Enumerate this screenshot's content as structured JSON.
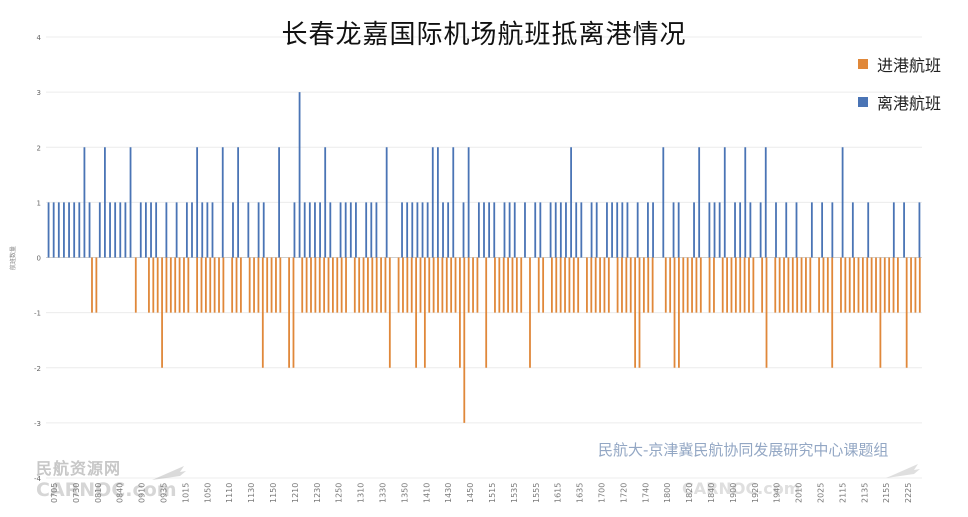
{
  "chart_data": {
    "type": "bar",
    "title": "长春龙嘉国际机场航班抵离港情况",
    "ylabel": "航班数量",
    "xlabel": "",
    "ylim": [
      -4,
      4
    ],
    "yticks": [
      4,
      3,
      2,
      1,
      0,
      -1,
      -2,
      -3,
      -4
    ],
    "grid": true,
    "legend_position": "top-right",
    "xtick_labels": [
      "0705",
      "0730",
      "0810",
      "0840",
      "0910",
      "0935",
      "1015",
      "1050",
      "1110",
      "1130",
      "1150",
      "1210",
      "1230",
      "1250",
      "1310",
      "1330",
      "1350",
      "1410",
      "1430",
      "1450",
      "1515",
      "1535",
      "1555",
      "1615",
      "1635",
      "1700",
      "1720",
      "1740",
      "1800",
      "1820",
      "1840",
      "1900",
      "1920",
      "1940",
      "2010",
      "2025",
      "2115",
      "2135",
      "2155",
      "2225"
    ],
    "series": [
      {
        "name": "进港航班",
        "color": "#e0883a",
        "values": [
          0,
          0,
          0,
          0,
          0,
          0,
          0,
          0,
          0,
          0,
          -1,
          -1,
          0,
          0,
          0,
          0,
          0,
          0,
          0,
          0,
          -1,
          0,
          0,
          -1,
          -1,
          -1,
          -2,
          -1,
          -1,
          -1,
          -1,
          -1,
          -1,
          0,
          -1,
          -1,
          -1,
          -1,
          -1,
          -1,
          -1,
          0,
          -1,
          -1,
          -1,
          0,
          -1,
          -1,
          -1,
          -2,
          -1,
          -1,
          -1,
          -1,
          0,
          -2,
          -2,
          0,
          -1,
          -1,
          -1,
          -1,
          -1,
          -1,
          -1,
          -1,
          -1,
          -1,
          -1,
          0,
          -1,
          -1,
          -1,
          -1,
          -1,
          -1,
          -1,
          -1,
          -2,
          0,
          -1,
          -1,
          -1,
          -1,
          -2,
          -1,
          -2,
          -1,
          -1,
          -1,
          -1,
          -1,
          -1,
          -1,
          -2,
          -3,
          -1,
          -1,
          -1,
          0,
          -2,
          0,
          -1,
          -1,
          -1,
          -1,
          -1,
          -1,
          -1,
          0,
          -2,
          0,
          -1,
          -1,
          0,
          -1,
          -1,
          -1,
          -1,
          -1,
          -1,
          -1,
          0,
          -1,
          -1,
          -1,
          -1,
          -1,
          -1,
          0,
          -1,
          -1,
          -1,
          -1,
          -2,
          -2,
          -1,
          -1,
          -1,
          0,
          0,
          -1,
          -1,
          -2,
          -2,
          -1,
          -1,
          -1,
          -1,
          -1,
          0,
          -1,
          -1,
          0,
          -1,
          -1,
          -1,
          -1,
          -1,
          -1,
          -1,
          -1,
          0,
          -1,
          -2,
          0,
          -1,
          -1,
          -1,
          -1,
          -1,
          -1,
          -1,
          -1,
          -1,
          0,
          -1,
          -1,
          -1,
          -2,
          0,
          -1,
          -1,
          -1,
          -1,
          -1,
          -1,
          -1,
          -1,
          -1,
          -2,
          -1,
          -1,
          -1,
          -1,
          0,
          -2,
          -1,
          -1,
          -1
        ],
        "display": "negative"
      },
      {
        "name": "离港航班",
        "color": "#4a74b5",
        "values": [
          1,
          1,
          1,
          1,
          1,
          1,
          1,
          2,
          1,
          0,
          1,
          2,
          1,
          1,
          1,
          1,
          2,
          0,
          1,
          1,
          1,
          1,
          0,
          1,
          0,
          1,
          0,
          1,
          1,
          2,
          1,
          1,
          1,
          0,
          2,
          0,
          1,
          2,
          0,
          1,
          0,
          1,
          1,
          0,
          0,
          2,
          0,
          0,
          1,
          3,
          1,
          1,
          1,
          1,
          2,
          1,
          0,
          1,
          1,
          1,
          1,
          0,
          1,
          1,
          1,
          0,
          2,
          0,
          0,
          1,
          1,
          1,
          1,
          1,
          1,
          2,
          2,
          1,
          1,
          2,
          0,
          1,
          2,
          0,
          1,
          1,
          1,
          1,
          0,
          1,
          1,
          1,
          0,
          1,
          0,
          1,
          1,
          0,
          1,
          1,
          1,
          1,
          2,
          1,
          1,
          0,
          1,
          1,
          0,
          1,
          1,
          1,
          1,
          1,
          0,
          1,
          0,
          1,
          1,
          0,
          2,
          0,
          1,
          1,
          0,
          0,
          1,
          2,
          0,
          1,
          1,
          1,
          2,
          0,
          1,
          1,
          2,
          1,
          0,
          1,
          2,
          0,
          1,
          0,
          1,
          0,
          1,
          0,
          0,
          1,
          0,
          1,
          0,
          1,
          0,
          2,
          0,
          1,
          0,
          0,
          1,
          0,
          0,
          0,
          0,
          1,
          0,
          1,
          0,
          0,
          1
        ],
        "display": "positive"
      }
    ]
  },
  "credit_text": "民航大-京津冀民航协同发展研究中心课题组",
  "watermark": {
    "left_cn": "民航资源网",
    "left_en": "CARNOC.com",
    "right_en": "CARNOC.com"
  }
}
